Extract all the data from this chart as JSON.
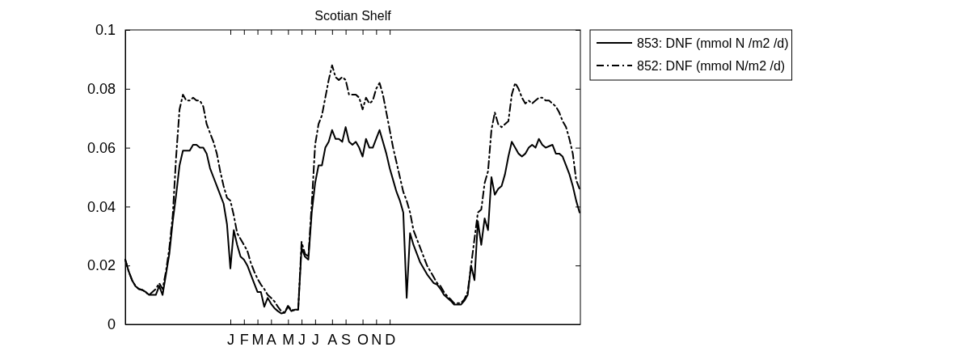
{
  "chart_data": {
    "type": "line",
    "title": "Scotian Shelf",
    "legend": "right",
    "grid": false,
    "marker": "none",
    "categories": [
      null,
      null,
      null,
      null,
      null,
      null,
      null,
      null,
      null,
      null,
      null,
      null,
      null,
      null,
      null,
      null,
      null,
      null,
      null,
      null,
      null,
      null,
      null,
      null,
      null,
      null,
      null,
      null,
      null,
      null,
      null,
      "J",
      null,
      null,
      null,
      "F",
      null,
      null,
      null,
      "M",
      null,
      null,
      null,
      "A",
      null,
      null,
      null,
      null,
      "M",
      null,
      null,
      null,
      "J",
      null,
      null,
      null,
      "J",
      null,
      null,
      null,
      null,
      "A",
      null,
      null,
      null,
      "S",
      null,
      null,
      null,
      null,
      "O",
      null,
      null,
      null,
      "N",
      null,
      null,
      null,
      "D",
      null,
      null,
      null,
      null,
      null,
      null,
      null,
      null,
      null,
      null,
      null,
      null,
      null,
      null,
      null,
      null,
      null,
      null,
      null,
      null,
      null,
      null,
      null,
      null,
      null,
      null,
      null,
      null,
      null,
      null,
      null,
      null,
      null,
      null,
      null,
      null,
      null,
      null,
      null,
      null,
      null,
      null,
      null,
      null,
      null,
      null,
      null,
      null,
      null,
      null,
      null,
      null,
      null,
      null,
      null,
      null
    ],
    "ylim": [
      0,
      0.1
    ],
    "yticks": [
      0,
      0.02,
      0.04,
      0.06,
      0.08,
      0.1
    ],
    "series": [
      {
        "name": "853: DNF (mmol N /m2 /d)",
        "color": "#000000",
        "line_style": "solid",
        "values": [
          0.022,
          0.018,
          0.015,
          0.013,
          0.012,
          0.0117,
          0.011,
          0.01,
          0.01,
          0.01,
          0.013,
          0.01,
          0.017,
          0.024,
          0.035,
          0.044,
          0.054,
          0.059,
          0.059,
          0.059,
          0.061,
          0.061,
          0.06,
          0.06,
          0.058,
          0.053,
          0.05,
          0.047,
          0.044,
          0.041,
          0.034,
          0.019,
          0.032,
          0.027,
          0.023,
          0.022,
          0.02,
          0.017,
          0.014,
          0.011,
          0.011,
          0.006,
          0.009,
          0.007,
          0.0055,
          0.0045,
          0.0037,
          0.004,
          0.006,
          0.0045,
          0.005,
          0.005,
          0.026,
          0.023,
          0.022,
          0.038,
          0.048,
          0.054,
          0.054,
          0.06,
          0.062,
          0.066,
          0.063,
          0.063,
          0.062,
          0.067,
          0.062,
          0.061,
          0.062,
          0.06,
          0.057,
          0.063,
          0.06,
          0.06,
          0.063,
          0.066,
          0.062,
          0.058,
          0.053,
          0.049,
          0.045,
          0.042,
          0.038,
          0.009,
          0.031,
          0.027,
          0.024,
          0.021,
          0.019,
          0.017,
          0.0155,
          0.014,
          0.0135,
          0.012,
          0.01,
          0.009,
          0.008,
          0.0067,
          0.0067,
          0.0067,
          0.008,
          0.01,
          0.02,
          0.015,
          0.035,
          0.027,
          0.036,
          0.032,
          0.05,
          0.044,
          0.046,
          0.047,
          0.051,
          0.057,
          0.062,
          0.06,
          0.058,
          0.057,
          0.058,
          0.06,
          0.061,
          0.06,
          0.063,
          0.061,
          0.06,
          0.0605,
          0.061,
          0.058,
          0.058,
          0.057,
          0.054,
          0.051,
          0.047,
          0.042,
          0.038
        ]
      },
      {
        "name": "852: DNF (mmol N/m2 /d)",
        "color": "#000000",
        "line_style": "dashdot",
        "values": [
          0.022,
          0.018,
          0.015,
          0.013,
          0.012,
          0.0117,
          0.011,
          0.01,
          0.011,
          0.012,
          0.014,
          0.012,
          0.018,
          0.026,
          0.037,
          0.057,
          0.073,
          0.078,
          0.076,
          0.076,
          0.077,
          0.076,
          0.076,
          0.074,
          0.068,
          0.065,
          0.062,
          0.058,
          0.052,
          0.047,
          0.043,
          0.042,
          0.037,
          0.031,
          0.029,
          0.027,
          0.025,
          0.021,
          0.018,
          0.0155,
          0.0135,
          0.012,
          0.01,
          0.009,
          0.0078,
          0.006,
          0.0045,
          0.004,
          0.0063,
          0.0049,
          0.0048,
          0.005,
          0.028,
          0.024,
          0.023,
          0.041,
          0.061,
          0.068,
          0.071,
          0.077,
          0.083,
          0.088,
          0.084,
          0.083,
          0.084,
          0.083,
          0.078,
          0.078,
          0.078,
          0.077,
          0.073,
          0.077,
          0.075,
          0.076,
          0.08,
          0.082,
          0.078,
          0.072,
          0.066,
          0.06,
          0.055,
          0.05,
          0.045,
          0.042,
          0.038,
          0.032,
          0.029,
          0.026,
          0.023,
          0.02,
          0.018,
          0.016,
          0.014,
          0.013,
          0.011,
          0.0095,
          0.0085,
          0.0072,
          0.0072,
          0.0072,
          0.0085,
          0.011,
          0.02,
          0.029,
          0.038,
          0.039,
          0.048,
          0.052,
          0.066,
          0.072,
          0.068,
          0.067,
          0.068,
          0.069,
          0.078,
          0.082,
          0.08,
          0.077,
          0.075,
          0.076,
          0.075,
          0.076,
          0.077,
          0.077,
          0.076,
          0.076,
          0.075,
          0.074,
          0.072,
          0.069,
          0.067,
          0.063,
          0.058,
          0.049,
          0.046
        ]
      }
    ]
  }
}
